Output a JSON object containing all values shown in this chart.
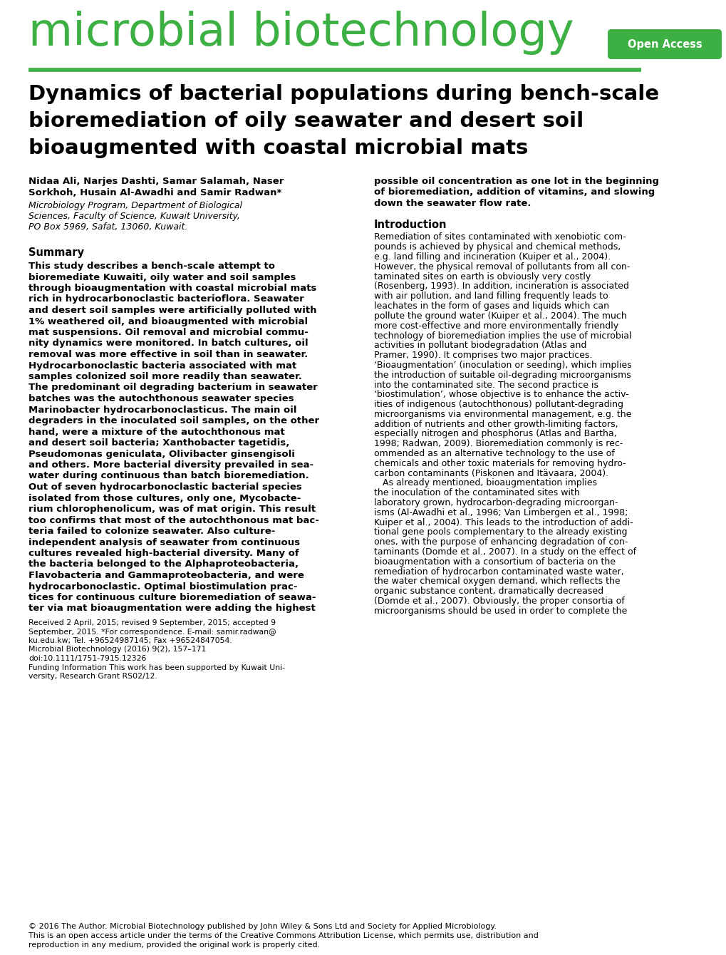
{
  "journal_name": "microbial biotechnology",
  "journal_color": "#3cb043",
  "open_access_text": "Open Access",
  "open_access_bg": "#3cb043",
  "line_color": "#3cb043",
  "article_title_line1": "Dynamics of bacterial populations during bench-scale",
  "article_title_line2": "bioremediation of oily seawater and desert soil",
  "article_title_line3": "bioaugmented with coastal microbial mats",
  "author_bold_line1": "Nidaa Ali, Narjes Dashti, Samar Salamah, Naser",
  "author_bold_line2": "Sorkhoh, Husain Al-Awadhi and Samir Radwan*",
  "affil_line1": "Microbiology Program, Department of Biological",
  "affil_line2": "Sciences, Faculty of Science, Kuwait University,",
  "affil_line3": "PO Box 5969, Safat, 13060, Kuwait.",
  "summary_head": "Summary",
  "summary_lines": [
    "This study describes a bench-scale attempt to",
    "bioremediate Kuwaiti, oily water and soil samples",
    "through bioaugmentation with coastal microbial mats",
    "rich in hydrocarbonoclastic bacterioflora. Seawater",
    "and desert soil samples were artificially polluted with",
    "1% weathered oil, and bioaugmented with microbial",
    "mat suspensions. Oil removal and microbial commu-",
    "nity dynamics were monitored. In batch cultures, oil",
    "removal was more effective in soil than in seawater.",
    "Hydrocarbonoclastic bacteria associated with mat",
    "samples colonized soil more readily than seawater.",
    "The predominant oil degrading bacterium in seawater",
    "batches was the autochthonous seawater species",
    "Marinobacter hydrocarbonoclasticus. The main oil",
    "degraders in the inoculated soil samples, on the other",
    "hand, were a mixture of the autochthonous mat",
    "and desert soil bacteria; Xanthobacter tagetidis,",
    "Pseudomonas geniculata, Olivibacter ginsengisoli",
    "and others. More bacterial diversity prevailed in sea-",
    "water during continuous than batch bioremediation.",
    "Out of seven hydrocarbonoclastic bacterial species",
    "isolated from those cultures, only one, Mycobacte-",
    "rium chlorophenolicum, was of mat origin. This result",
    "too confirms that most of the autochthonous mat bac-",
    "teria failed to colonize seawater. Also culture-",
    "independent analysis of seawater from continuous",
    "cultures revealed high-bacterial diversity. Many of",
    "the bacteria belonged to the Alphaproteobacteria,",
    "Flavobacteria and Gammaproteobacteria, and were",
    "hydrocarbonoclastic. Optimal biostimulation prac-",
    "tices for continuous culture bioremediation of seawa-",
    "ter via mat bioaugmentation were adding the highest"
  ],
  "received_lines": [
    "Received 2 April, 2015; revised 9 September, 2015; accepted 9",
    "September, 2015. *For correspondence. E-mail: samir.radwan@",
    "ku.edu.kw; Tel. +96524987145; Fax +96524847054.",
    "Microbial Biotechnology (2016) 9(2), 157–171",
    "doi:10.1111/1751-7915.12326",
    "Funding Information This work has been supported by Kuwait Uni-",
    "versity, Research Grant RS02/12."
  ],
  "right_summary_lines": [
    "possible oil concentration as one lot in the beginning",
    "of bioremediation, addition of vitamins, and slowing",
    "down the seawater flow rate."
  ],
  "intro_head": "Introduction",
  "intro_lines": [
    "Remediation of sites contaminated with xenobiotic com-",
    "pounds is achieved by physical and chemical methods,",
    "e.g. land filling and incineration (Kuiper et al., 2004).",
    "However, the physical removal of pollutants from all con-",
    "taminated sites on earth is obviously very costly",
    "(Rosenberg, 1993). In addition, incineration is associated",
    "with air pollution, and land filling frequently leads to",
    "leachates in the form of gases and liquids which can",
    "pollute the ground water (Kuiper et al., 2004). The much",
    "more cost-effective and more environmentally friendly",
    "technology of bioremediation implies the use of microbial",
    "activities in pollutant biodegradation (Atlas and",
    "Pramer, 1990). It comprises two major practices.",
    "‘Bioaugmentation’ (inoculation or seeding), which implies",
    "the introduction of suitable oil-degrading microorganisms",
    "into the contaminated site. The second practice is",
    "‘biostimulation’, whose objective is to enhance the activ-",
    "ities of indigenous (autochthonous) pollutant-degrading",
    "microorganisms via environmental management, e.g. the",
    "addition of nutrients and other growth-limiting factors,",
    "especially nitrogen and phosphorus (Atlas and Bartha,",
    "1998; Radwan, 2009). Bioremediation commonly is rec-",
    "ommended as an alternative technology to the use of",
    "chemicals and other toxic materials for removing hydro-",
    "carbon contaminants (Piskonen and Itävaara, 2004).",
    "   As already mentioned, bioaugmentation implies",
    "the inoculation of the contaminated sites with",
    "laboratory grown, hydrocarbon-degrading microorgan-",
    "isms (Al-Awadhi et al., 1996; Van Limbergen et al., 1998;",
    "Kuiper et al., 2004). This leads to the introduction of addi-",
    "tional gene pools complementary to the already existing",
    "ones, with the purpose of enhancing degradation of con-",
    "taminants (Domde et al., 2007). In a study on the effect of",
    "bioaugmentation with a consortium of bacteria on the",
    "remediation of hydrocarbon contaminated waste water,",
    "the water chemical oxygen demand, which reflects the",
    "organic substance content, dramatically decreased",
    "(Domde et al., 2007). Obviously, the proper consortia of",
    "microorganisms should be used in order to complete the"
  ],
  "copyright_lines": [
    "© 2016 The Author. Microbial Biotechnology published by John Wiley & Sons Ltd and Society for Applied Microbiology.",
    "This is an open access article under the terms of the Creative Commons Attribution License, which permits use, distribution and",
    "reproduction in any medium, provided the original work is properly cited."
  ],
  "bg_color": "#ffffff",
  "text_color": "#000000"
}
